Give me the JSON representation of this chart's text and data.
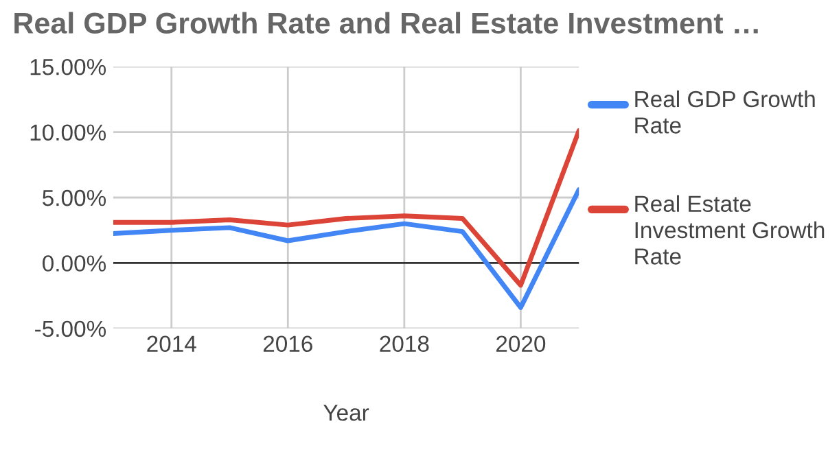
{
  "chart_data": {
    "type": "line",
    "title": "Real GDP Growth Rate and Real Estate Investment …",
    "xlabel": "Year",
    "x": [
      2013,
      2014,
      2015,
      2016,
      2017,
      2018,
      2019,
      2020,
      2021
    ],
    "series": [
      {
        "name": "Real GDP Growth Rate",
        "color": "#4285f4",
        "values": [
          2.25,
          2.5,
          2.7,
          1.7,
          2.4,
          3.0,
          2.4,
          -3.4,
          5.6
        ]
      },
      {
        "name": "Real Estate Investment Growth Rate",
        "color": "#db4437",
        "values": [
          3.1,
          3.1,
          3.3,
          2.9,
          3.4,
          3.6,
          3.4,
          -1.7,
          10.1
        ]
      }
    ],
    "xlim": [
      2013,
      2021
    ],
    "xticks": [
      2014,
      2016,
      2018,
      2020
    ],
    "ylim": [
      -5,
      15
    ],
    "yticks": [
      {
        "value": -5,
        "label": "-5.00%"
      },
      {
        "value": 0,
        "label": "0.00%"
      },
      {
        "value": 5,
        "label": "5.00%"
      },
      {
        "value": 10,
        "label": "10.00%"
      },
      {
        "value": 15,
        "label": "15.00%"
      }
    ],
    "ref_lines": [
      {
        "axis": "y",
        "value": 0,
        "color": "#333333"
      }
    ],
    "grid": true,
    "legend": "right",
    "line_style": "solid"
  }
}
